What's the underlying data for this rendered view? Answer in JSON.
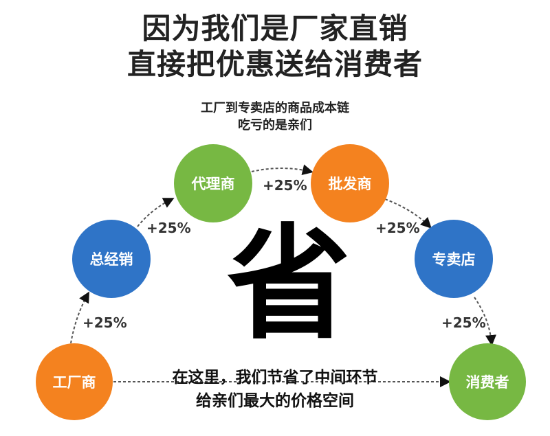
{
  "title": {
    "line1": "因为我们是厂家直销",
    "line2": "直接把优惠送给消费者"
  },
  "subtitle": {
    "line1": "工厂到专卖店的商品成本链",
    "line2": "吃亏的是亲们"
  },
  "nodes": [
    {
      "label": "工厂商",
      "color": "#f4821f"
    },
    {
      "label": "总经销",
      "color": "#2f74c7"
    },
    {
      "label": "代理商",
      "color": "#77b843"
    },
    {
      "label": "批发商",
      "color": "#f4821f"
    },
    {
      "label": "专卖店",
      "color": "#2f74c7"
    },
    {
      "label": "消费者",
      "color": "#77b843"
    }
  ],
  "markups": [
    "+25%",
    "+25%",
    "+25%",
    "+25%",
    "+25%"
  ],
  "center_char": "省",
  "note": {
    "line1": "在这里，我们节省了中间环节",
    "line2": "给亲们最大的价格空间"
  }
}
